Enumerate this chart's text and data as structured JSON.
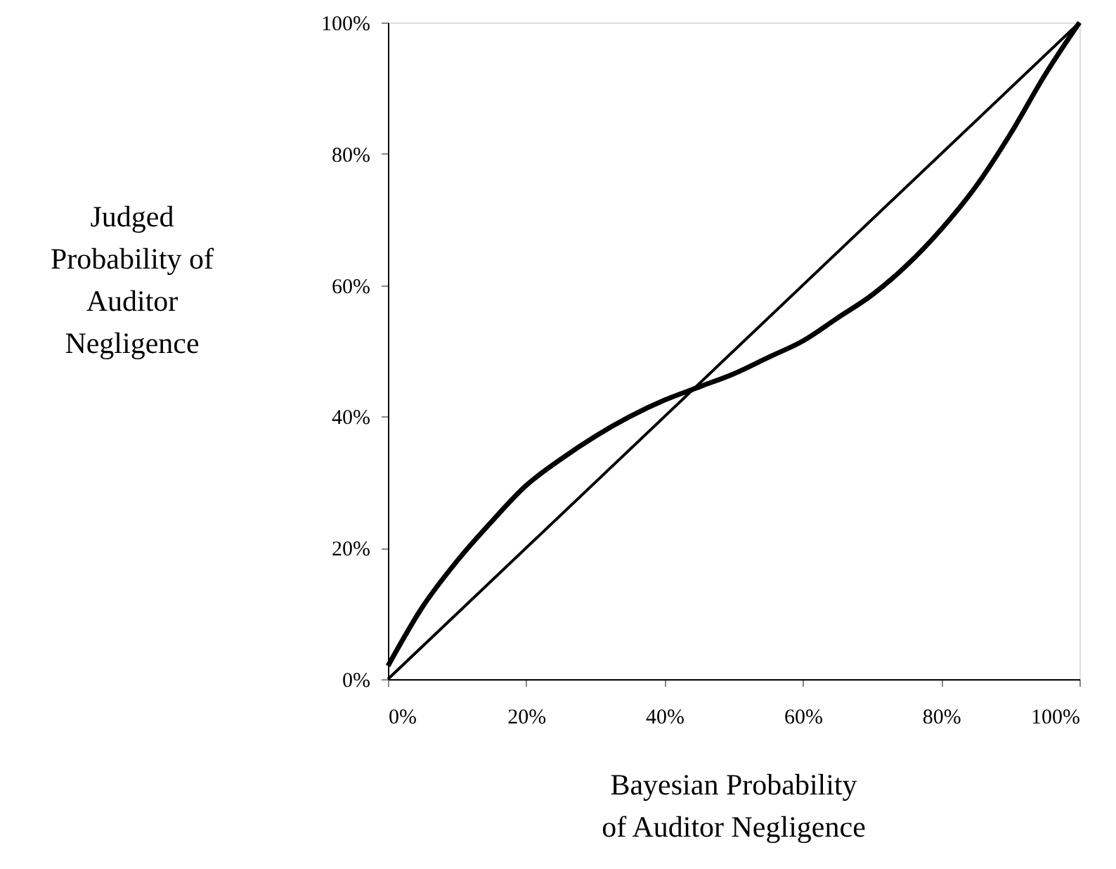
{
  "chart_data": {
    "type": "line",
    "xlabel": "Bayesian Probability\nof Auditor Negligence",
    "ylabel": "Judged\nProbability of\nAuditor\nNegligence",
    "xlim": [
      0,
      100
    ],
    "ylim": [
      0,
      100
    ],
    "xticks": [
      {
        "value": 0,
        "label": "0%"
      },
      {
        "value": 20,
        "label": "20%"
      },
      {
        "value": 40,
        "label": "40%"
      },
      {
        "value": 60,
        "label": "60%"
      },
      {
        "value": 80,
        "label": "80%"
      },
      {
        "value": 100,
        "label": "100%"
      }
    ],
    "yticks": [
      {
        "value": 0,
        "label": "0%"
      },
      {
        "value": 20,
        "label": "20%"
      },
      {
        "value": 40,
        "label": "40%"
      },
      {
        "value": 60,
        "label": "60%"
      },
      {
        "value": 80,
        "label": "80%"
      },
      {
        "value": 100,
        "label": "100%"
      }
    ],
    "grid": false,
    "marker": "none",
    "line_style": "solid",
    "series": [
      {
        "color": "#000000",
        "x": [
          0,
          5,
          10,
          15,
          20,
          25,
          30,
          35,
          40,
          45,
          50,
          55,
          60,
          65,
          70,
          75,
          80,
          85,
          90,
          95,
          100
        ],
        "values": [
          2,
          11,
          18,
          24,
          29.5,
          33.5,
          37,
          40,
          42.5,
          44.5,
          46.5,
          49,
          51.5,
          55,
          58.5,
          63,
          68.5,
          75,
          83,
          92,
          100
        ]
      },
      {
        "color": "#000000",
        "x": [
          0,
          100
        ],
        "values": [
          0,
          100
        ]
      }
    ]
  }
}
